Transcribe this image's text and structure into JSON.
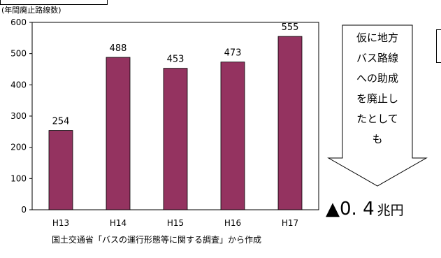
{
  "chart_data": {
    "type": "bar",
    "ylabel": "(年間廃止路線数)",
    "categories": [
      "H13",
      "H14",
      "H15",
      "H16",
      "H17"
    ],
    "values": [
      254,
      488,
      453,
      473,
      555
    ],
    "ylim": [
      0,
      600
    ],
    "yticks": [
      0,
      100,
      200,
      300,
      400,
      500,
      600
    ],
    "bar_color": "#943360",
    "grid": false
  },
  "source_note": "国土交通省「バスの運行形態等に関する調査」から作成",
  "callout": {
    "lines": [
      "仮に地方",
      "バス路線",
      "への助成",
      "を廃止し",
      "たとして",
      "も"
    ]
  },
  "result": {
    "value": "▲0. 4",
    "unit": "兆円"
  }
}
